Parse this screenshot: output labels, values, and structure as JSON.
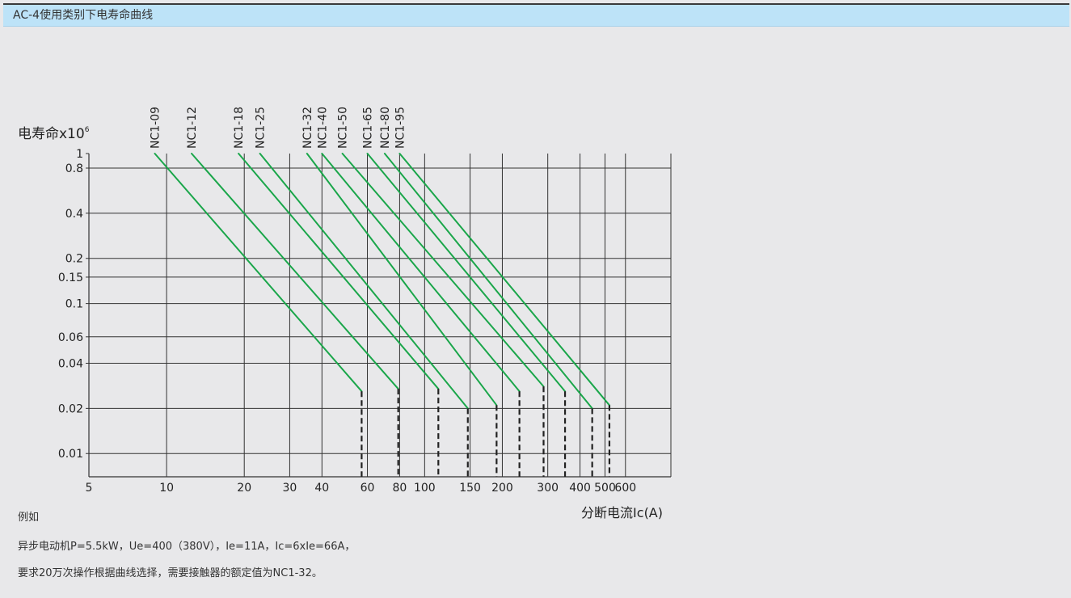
{
  "header": {
    "title": "AC-4使用类别下电寿命曲线"
  },
  "chart_data": {
    "type": "line",
    "title": "",
    "ylabel": "电寿命x10",
    "ylabel_sup": "6",
    "xlabel": "分断电流Ic(A)",
    "xscale": "log",
    "yscale": "log",
    "xlim": [
      5,
      900
    ],
    "ylim": [
      0.007,
      1
    ],
    "grid": true,
    "x_ticks": [
      5,
      10,
      20,
      30,
      40,
      60,
      80,
      100,
      150,
      200,
      300,
      400,
      500,
      600
    ],
    "x_tick_labels": [
      "5",
      "10",
      "20",
      "30",
      "40",
      "60",
      "80",
      "100",
      "150",
      "200",
      "300",
      "400",
      "500",
      "600"
    ],
    "y_ticks": [
      1,
      0.8,
      0.4,
      0.2,
      0.15,
      0.1,
      0.06,
      0.04,
      0.02,
      0.01
    ],
    "y_tick_labels": [
      "1",
      "0.8",
      "0.4",
      "0.2",
      "0.15",
      "0.1",
      "0.06",
      "0.04",
      "0.02",
      "0.01"
    ],
    "line_color": "#1aa64a",
    "cutoff_color": "#222222",
    "series": [
      {
        "name": "NC1-09",
        "points": [
          [
            9,
            1
          ],
          [
            57,
            0.026
          ]
        ]
      },
      {
        "name": "NC1-12",
        "points": [
          [
            12.5,
            1
          ],
          [
            79,
            0.027
          ]
        ]
      },
      {
        "name": "NC1-18",
        "points": [
          [
            19,
            1
          ],
          [
            113,
            0.027
          ]
        ]
      },
      {
        "name": "NC1-25",
        "points": [
          [
            23,
            1
          ],
          [
            147,
            0.02
          ]
        ]
      },
      {
        "name": "NC1-32",
        "points": [
          [
            35,
            1
          ],
          [
            190,
            0.021
          ]
        ]
      },
      {
        "name": "NC1-40",
        "points": [
          [
            40,
            1
          ],
          [
            233,
            0.026
          ]
        ]
      },
      {
        "name": "NC1-50",
        "points": [
          [
            48,
            1
          ],
          [
            289,
            0.028
          ]
        ]
      },
      {
        "name": "NC1-65",
        "points": [
          [
            60,
            1
          ],
          [
            350,
            0.026
          ]
        ]
      },
      {
        "name": "NC1-80",
        "points": [
          [
            70,
            1
          ],
          [
            446,
            0.02
          ]
        ]
      },
      {
        "name": "NC1-95",
        "points": [
          [
            80,
            1
          ],
          [
            520,
            0.021
          ]
        ]
      }
    ]
  },
  "notes": {
    "example_title": "例如",
    "line1": "异步电动机P=5.5kW，Ue=400（380V），Ie=11A，Ic=6xIe=66A，",
    "line2": "要求20万次操作根据曲线选择，需要接触器的额定值为NC1-32。"
  }
}
